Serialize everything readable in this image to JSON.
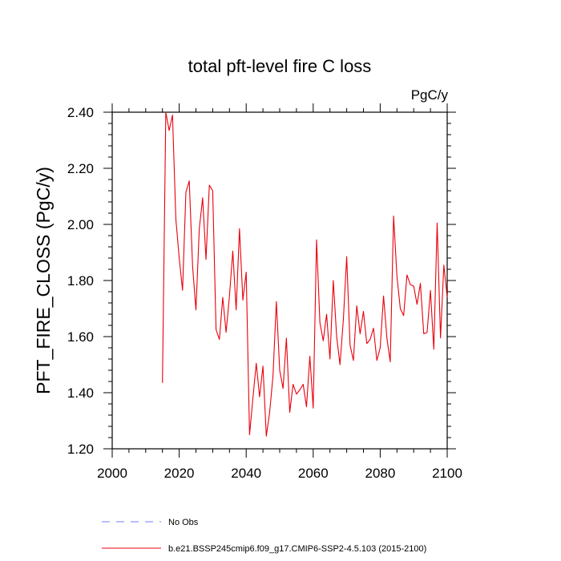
{
  "chart_data": {
    "type": "line",
    "title": "total pft-level fire C loss",
    "units": "PgC/y",
    "xlabel": "",
    "ylabel": "PFT_FIRE_CLOSS  (PgC/y)",
    "xlim": [
      2000,
      2100
    ],
    "ylim": [
      1.2,
      2.4
    ],
    "x_ticks": [
      2000,
      2020,
      2040,
      2060,
      2080,
      2100
    ],
    "y_ticks": [
      1.2,
      1.4,
      1.6,
      1.8,
      2.0,
      2.2,
      2.4
    ],
    "x_tick_labels": [
      "2000",
      "2020",
      "2040",
      "2060",
      "2080",
      "2100"
    ],
    "y_tick_labels": [
      "1.20",
      "1.40",
      "1.60",
      "1.80",
      "2.00",
      "2.20",
      "2.40"
    ],
    "grid": false,
    "series": [
      {
        "name": "b.e21.BSSP245cmip6.f09_g17.CMIP6-SSP2-4.5.103 (2015-2100)",
        "color": "#e8000b",
        "style": "solid",
        "x": [
          2015,
          2016,
          2017,
          2018,
          2019,
          2020,
          2021,
          2022,
          2023,
          2024,
          2025,
          2026,
          2027,
          2028,
          2029,
          2030,
          2031,
          2032,
          2033,
          2034,
          2035,
          2036,
          2037,
          2038,
          2039,
          2040,
          2041,
          2042,
          2043,
          2044,
          2045,
          2046,
          2047,
          2048,
          2049,
          2050,
          2051,
          2052,
          2053,
          2054,
          2055,
          2056,
          2057,
          2058,
          2059,
          2060,
          2061,
          2062,
          2063,
          2064,
          2065,
          2066,
          2067,
          2068,
          2069,
          2070,
          2071,
          2072,
          2073,
          2074,
          2075,
          2076,
          2077,
          2078,
          2079,
          2080,
          2081,
          2082,
          2083,
          2084,
          2085,
          2086,
          2087,
          2088,
          2089,
          2090,
          2091,
          2092,
          2093,
          2094,
          2095,
          2096,
          2097,
          2098,
          2099,
          2100
        ],
        "values": [
          1.435,
          2.4,
          2.335,
          2.39,
          2.02,
          1.88,
          1.765,
          2.115,
          2.155,
          1.85,
          1.695,
          1.985,
          2.095,
          1.875,
          2.14,
          2.12,
          1.625,
          1.59,
          1.74,
          1.615,
          1.745,
          1.905,
          1.695,
          1.985,
          1.73,
          1.83,
          1.25,
          1.38,
          1.505,
          1.385,
          1.495,
          1.245,
          1.33,
          1.46,
          1.725,
          1.48,
          1.415,
          1.595,
          1.33,
          1.43,
          1.395,
          1.41,
          1.43,
          1.35,
          1.53,
          1.345,
          1.945,
          1.65,
          1.585,
          1.68,
          1.52,
          1.8,
          1.6,
          1.5,
          1.66,
          1.885,
          1.57,
          1.515,
          1.71,
          1.61,
          1.69,
          1.575,
          1.59,
          1.63,
          1.515,
          1.56,
          1.745,
          1.595,
          1.51,
          2.03,
          1.815,
          1.7,
          1.675,
          1.82,
          1.785,
          1.78,
          1.715,
          1.79,
          1.61,
          1.615,
          1.765,
          1.555,
          2.005,
          1.595,
          1.855,
          1.74
        ]
      },
      {
        "name": "No Obs",
        "color": "#7a7aff",
        "style": "dashed",
        "x": [],
        "values": []
      }
    ],
    "legend": [
      "No Obs",
      "b.e21.BSSP245cmip6.f09_g17.CMIP6-SSP2-4.5.103 (2015-2100)"
    ],
    "legend_position": "bottom-left"
  }
}
